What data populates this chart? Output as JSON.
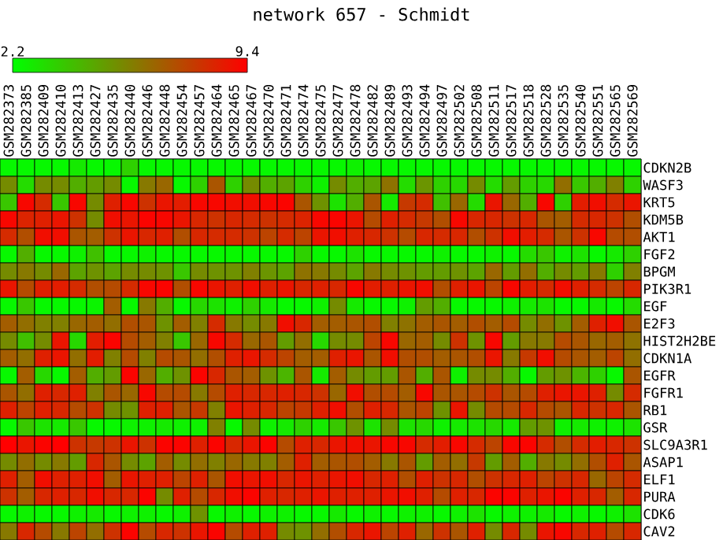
{
  "chart_data": {
    "type": "heatmap",
    "title": "network 657 - Schmidt",
    "categories": [
      "GSM282373",
      "GSM282385",
      "GSM282409",
      "GSM282410",
      "GSM282413",
      "GSM282427",
      "GSM282435",
      "GSM282440",
      "GSM282446",
      "GSM282448",
      "GSM282454",
      "GSM282457",
      "GSM282464",
      "GSM282465",
      "GSM282467",
      "GSM282470",
      "GSM282471",
      "GSM282474",
      "GSM282475",
      "GSM282477",
      "GSM282478",
      "GSM282482",
      "GSM282489",
      "GSM282493",
      "GSM282494",
      "GSM282497",
      "GSM282502",
      "GSM282508",
      "GSM282511",
      "GSM282517",
      "GSM282518",
      "GSM282528",
      "GSM282535",
      "GSM282540",
      "GSM282551",
      "GSM282565",
      "GSM282569"
    ],
    "y_categories": [
      "CDKN2B",
      "WASF3",
      "KRT5",
      "KDM5B",
      "AKT1",
      "FGF2",
      "BPGM",
      "PIK3R1",
      "EGF",
      "E2F3",
      "HIST2H2BE",
      "CDKN1A",
      "EGFR",
      "FGFR1",
      "RB1",
      "GSR",
      "SLC9A3R1",
      "ASAP1",
      "ELF1",
      "PURA",
      "CDK6",
      "CAV2"
    ],
    "cells": [
      [
        2.4,
        2.4,
        2.4,
        2.4,
        2.8,
        2.4,
        2.4,
        3.5,
        2.4,
        2.4,
        2.4,
        2.4,
        2.4,
        2.4,
        2.4,
        2.4,
        2.4,
        2.4,
        2.4,
        2.4,
        2.6,
        2.4,
        2.4,
        2.4,
        2.4,
        2.4,
        2.4,
        2.4,
        2.4,
        2.4,
        2.4,
        2.4,
        2.4,
        2.4,
        2.4,
        2.4,
        2.4
      ],
      [
        5.5,
        3.2,
        5.5,
        5.5,
        4.5,
        5.0,
        5.5,
        2.4,
        6.0,
        6.5,
        2.4,
        3.5,
        7.0,
        3.5,
        5.5,
        4.5,
        4.8,
        3.5,
        2.6,
        5.5,
        4.5,
        4.8,
        6.2,
        3.2,
        5.2,
        3.5,
        3.3,
        5.5,
        3.2,
        5.0,
        3.5,
        3.3,
        6.3,
        3.8,
        4.5,
        5.8,
        3.5
      ],
      [
        3.8,
        9.2,
        8.2,
        3.8,
        9.2,
        5.5,
        8.5,
        9.2,
        8.0,
        8.8,
        8.6,
        9.2,
        9.2,
        9.0,
        9.0,
        9.2,
        9.3,
        7.0,
        5.3,
        3.0,
        4.5,
        7.0,
        2.8,
        7.8,
        8.2,
        4.0,
        6.5,
        3.2,
        8.8,
        6.5,
        4.5,
        9.2,
        3.5,
        8.6,
        9.0,
        8.2,
        8.8
      ],
      [
        9.2,
        8.4,
        8.5,
        8.8,
        8.0,
        5.5,
        9.0,
        8.8,
        9.3,
        9.2,
        8.8,
        8.3,
        8.0,
        8.3,
        8.2,
        8.0,
        8.2,
        8.4,
        9.2,
        9.3,
        8.8,
        7.3,
        8.5,
        8.2,
        7.8,
        7.2,
        9.2,
        8.3,
        8.3,
        8.0,
        8.3,
        7.0,
        6.8,
        8.2,
        8.3,
        8.0,
        7.2
      ],
      [
        8.2,
        7.2,
        9.0,
        9.0,
        7.0,
        6.8,
        8.0,
        8.8,
        8.3,
        8.5,
        7.2,
        8.3,
        8.2,
        8.2,
        8.0,
        7.5,
        8.2,
        7.5,
        8.8,
        9.0,
        8.5,
        8.3,
        8.0,
        7.3,
        8.3,
        8.2,
        8.3,
        7.2,
        8.0,
        9.0,
        8.6,
        8.2,
        7.0,
        8.0,
        9.2,
        7.3,
        7.2
      ],
      [
        2.4,
        4.5,
        2.4,
        2.4,
        2.6,
        4.0,
        2.4,
        2.4,
        2.6,
        2.4,
        2.4,
        2.4,
        2.4,
        2.4,
        2.4,
        2.4,
        2.4,
        3.5,
        2.4,
        2.4,
        3.0,
        2.4,
        2.4,
        2.4,
        2.4,
        2.6,
        2.4,
        2.4,
        2.6,
        2.4,
        3.2,
        3.8,
        2.6,
        3.0,
        2.4,
        2.8,
        3.5
      ],
      [
        5.5,
        6.0,
        5.5,
        6.5,
        4.8,
        5.3,
        4.8,
        5.5,
        5.5,
        5.3,
        3.8,
        5.5,
        5.3,
        5.3,
        5.8,
        5.2,
        4.8,
        6.2,
        6.0,
        5.5,
        4.8,
        6.0,
        5.5,
        5.3,
        5.0,
        5.0,
        5.3,
        4.8,
        6.5,
        5.0,
        6.3,
        4.5,
        5.5,
        5.0,
        6.0,
        3.5,
        5.8
      ],
      [
        8.8,
        7.3,
        8.5,
        8.6,
        8.2,
        7.2,
        7.3,
        8.2,
        9.2,
        9.3,
        7.2,
        9.2,
        8.8,
        8.5,
        9.0,
        8.5,
        8.8,
        8.3,
        8.5,
        8.3,
        9.2,
        8.6,
        8.5,
        8.8,
        9.0,
        7.2,
        8.5,
        8.8,
        7.5,
        9.2,
        8.6,
        8.2,
        9.0,
        8.5,
        8.2,
        7.5,
        8.3
      ],
      [
        2.4,
        3.8,
        2.4,
        2.4,
        2.4,
        2.5,
        6.8,
        2.4,
        6.0,
        4.5,
        2.4,
        3.3,
        3.0,
        2.6,
        3.5,
        2.8,
        2.4,
        2.4,
        2.6,
        5.5,
        2.8,
        2.4,
        2.4,
        2.6,
        5.0,
        4.5,
        2.4,
        2.4,
        2.4,
        2.6,
        2.8,
        3.0,
        2.4,
        2.4,
        2.8,
        2.4,
        3.2
      ],
      [
        6.8,
        6.3,
        5.8,
        5.8,
        6.5,
        6.8,
        6.3,
        7.2,
        7.0,
        5.3,
        6.8,
        5.8,
        8.2,
        6.0,
        5.5,
        6.0,
        9.0,
        8.3,
        6.8,
        6.8,
        7.0,
        7.2,
        5.8,
        6.2,
        6.8,
        7.0,
        6.8,
        7.2,
        6.8,
        7.3,
        5.5,
        6.3,
        5.3,
        6.8,
        8.5,
        9.0,
        7.0
      ],
      [
        5.5,
        4.0,
        5.5,
        8.8,
        3.3,
        8.6,
        9.3,
        7.3,
        6.8,
        5.8,
        3.8,
        6.5,
        9.2,
        8.2,
        6.5,
        7.0,
        5.0,
        6.3,
        3.3,
        5.5,
        5.5,
        7.5,
        9.2,
        6.5,
        6.8,
        5.5,
        8.0,
        5.3,
        9.2,
        5.0,
        6.0,
        6.0,
        7.3,
        7.0,
        6.5,
        6.8,
        6.2
      ],
      [
        6.8,
        6.3,
        8.5,
        8.8,
        6.3,
        8.6,
        5.8,
        7.3,
        5.8,
        7.3,
        7.0,
        6.3,
        7.2,
        8.5,
        8.8,
        8.2,
        7.5,
        6.8,
        6.8,
        8.5,
        8.8,
        7.0,
        9.0,
        7.2,
        7.2,
        6.8,
        7.0,
        7.2,
        8.8,
        6.0,
        7.8,
        9.0,
        7.3,
        7.0,
        6.8,
        7.5,
        6.3
      ],
      [
        2.4,
        6.8,
        3.3,
        2.4,
        6.8,
        4.5,
        5.0,
        9.3,
        6.5,
        4.5,
        5.3,
        9.3,
        8.3,
        7.0,
        6.8,
        5.3,
        4.3,
        7.0,
        2.8,
        6.8,
        5.5,
        5.0,
        5.0,
        7.0,
        4.5,
        7.0,
        2.6,
        5.5,
        5.5,
        4.5,
        2.4,
        5.0,
        5.3,
        4.3,
        3.5,
        2.4,
        7.0
      ],
      [
        7.0,
        6.3,
        8.5,
        8.3,
        8.5,
        5.8,
        7.0,
        6.5,
        9.2,
        7.3,
        7.3,
        6.0,
        7.3,
        8.5,
        8.3,
        8.3,
        8.5,
        8.3,
        8.0,
        6.5,
        9.0,
        7.2,
        7.3,
        6.8,
        9.2,
        7.0,
        7.0,
        7.3,
        8.0,
        7.0,
        7.3,
        8.5,
        8.8,
        8.8,
        8.5,
        5.5,
        8.2
      ],
      [
        8.5,
        7.5,
        8.5,
        8.3,
        7.3,
        8.0,
        5.5,
        5.3,
        8.5,
        8.5,
        7.0,
        7.8,
        5.8,
        8.8,
        8.5,
        8.3,
        7.5,
        7.8,
        8.5,
        9.0,
        7.2,
        8.5,
        8.3,
        7.0,
        7.5,
        5.3,
        8.8,
        5.5,
        7.3,
        7.3,
        8.3,
        7.3,
        7.0,
        8.3,
        8.0,
        8.3,
        7.0
      ],
      [
        2.4,
        3.8,
        3.0,
        2.8,
        3.8,
        2.4,
        2.4,
        2.6,
        2.6,
        2.8,
        2.6,
        2.6,
        5.8,
        2.4,
        5.5,
        2.6,
        2.8,
        3.5,
        2.8,
        3.8,
        5.3,
        3.0,
        5.5,
        3.0,
        3.3,
        2.6,
        2.8,
        3.0,
        3.3,
        2.8,
        5.0,
        5.3,
        2.6,
        2.8,
        2.6,
        2.6,
        3.0
      ],
      [
        9.4,
        8.8,
        9.3,
        9.4,
        8.0,
        7.8,
        8.0,
        8.8,
        8.0,
        9.3,
        9.3,
        8.5,
        9.3,
        8.3,
        8.8,
        9.3,
        7.3,
        8.5,
        8.3,
        8.8,
        9.0,
        8.8,
        9.2,
        9.2,
        8.2,
        8.6,
        9.2,
        8.2,
        7.5,
        9.2,
        9.3,
        8.2,
        7.2,
        8.2,
        8.6,
        8.3,
        8.0
      ],
      [
        5.5,
        6.3,
        5.5,
        6.0,
        5.0,
        8.3,
        7.0,
        5.5,
        4.8,
        6.8,
        5.5,
        6.3,
        5.8,
        6.5,
        6.0,
        5.8,
        6.8,
        8.5,
        6.8,
        7.0,
        7.2,
        6.8,
        6.0,
        7.0,
        5.0,
        6.8,
        6.3,
        7.8,
        5.0,
        6.8,
        4.5,
        6.0,
        5.5,
        6.3,
        7.2,
        8.5,
        7.0
      ],
      [
        8.5,
        6.8,
        9.0,
        8.5,
        8.5,
        9.0,
        6.8,
        8.8,
        8.5,
        8.5,
        7.5,
        8.5,
        7.0,
        9.0,
        8.8,
        9.0,
        8.3,
        8.8,
        8.5,
        8.8,
        9.0,
        8.3,
        8.5,
        7.2,
        8.5,
        8.0,
        8.3,
        7.2,
        8.0,
        8.3,
        8.5,
        7.5,
        8.0,
        8.3,
        6.5,
        7.5,
        8.2
      ],
      [
        8.0,
        6.8,
        8.3,
        8.5,
        8.3,
        9.0,
        8.3,
        8.3,
        9.3,
        5.5,
        8.5,
        7.3,
        8.3,
        9.0,
        9.3,
        8.5,
        8.3,
        8.5,
        8.8,
        8.5,
        8.5,
        8.5,
        8.8,
        9.0,
        8.5,
        7.3,
        8.5,
        8.3,
        9.3,
        9.3,
        8.5,
        8.8,
        9.3,
        8.5,
        8.3,
        6.8,
        8.3
      ],
      [
        2.4,
        2.6,
        2.4,
        2.4,
        2.6,
        2.8,
        2.4,
        2.6,
        2.6,
        2.4,
        2.6,
        5.3,
        2.4,
        2.6,
        2.4,
        2.6,
        2.6,
        2.4,
        2.4,
        2.8,
        2.4,
        2.6,
        2.4,
        2.6,
        2.6,
        2.4,
        2.6,
        3.0,
        2.4,
        2.6,
        2.6,
        2.8,
        2.4,
        2.6,
        2.4,
        2.6,
        3.0
      ],
      [
        6.0,
        8.3,
        7.3,
        6.0,
        7.5,
        6.3,
        8.0,
        9.3,
        7.3,
        8.3,
        8.0,
        8.8,
        9.3,
        7.3,
        8.5,
        8.5,
        5.5,
        5.3,
        6.3,
        7.2,
        8.3,
        8.8,
        7.5,
        8.5,
        6.5,
        8.0,
        7.0,
        8.5,
        5.5,
        8.3,
        5.5,
        8.8,
        9.2,
        8.3,
        8.5,
        7.3,
        8.3
      ]
    ],
    "clim": [
      2.2,
      9.4
    ],
    "cticks": [
      2.2,
      9.4
    ],
    "grid": true
  }
}
